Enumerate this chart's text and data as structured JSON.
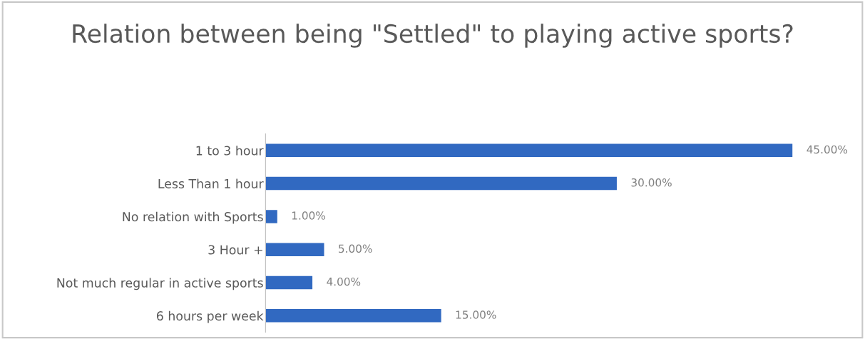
{
  "chart_data": {
    "type": "bar",
    "orientation": "horizontal",
    "title": "Relation between being \"Settled\" to playing active sports?",
    "categories": [
      "1 to 3 hour",
      "Less Than 1 hour",
      "No relation with Sports",
      "3 Hour +",
      "Not much regular in active sports",
      "6 hours per week"
    ],
    "values": [
      45,
      30,
      1,
      5,
      4,
      15
    ],
    "value_labels": [
      "45.00%",
      "30.00%",
      "1.00%",
      "5.00%",
      "4.00%",
      "15.00%"
    ],
    "color": "#3169c1",
    "grid": false,
    "legend": false
  }
}
